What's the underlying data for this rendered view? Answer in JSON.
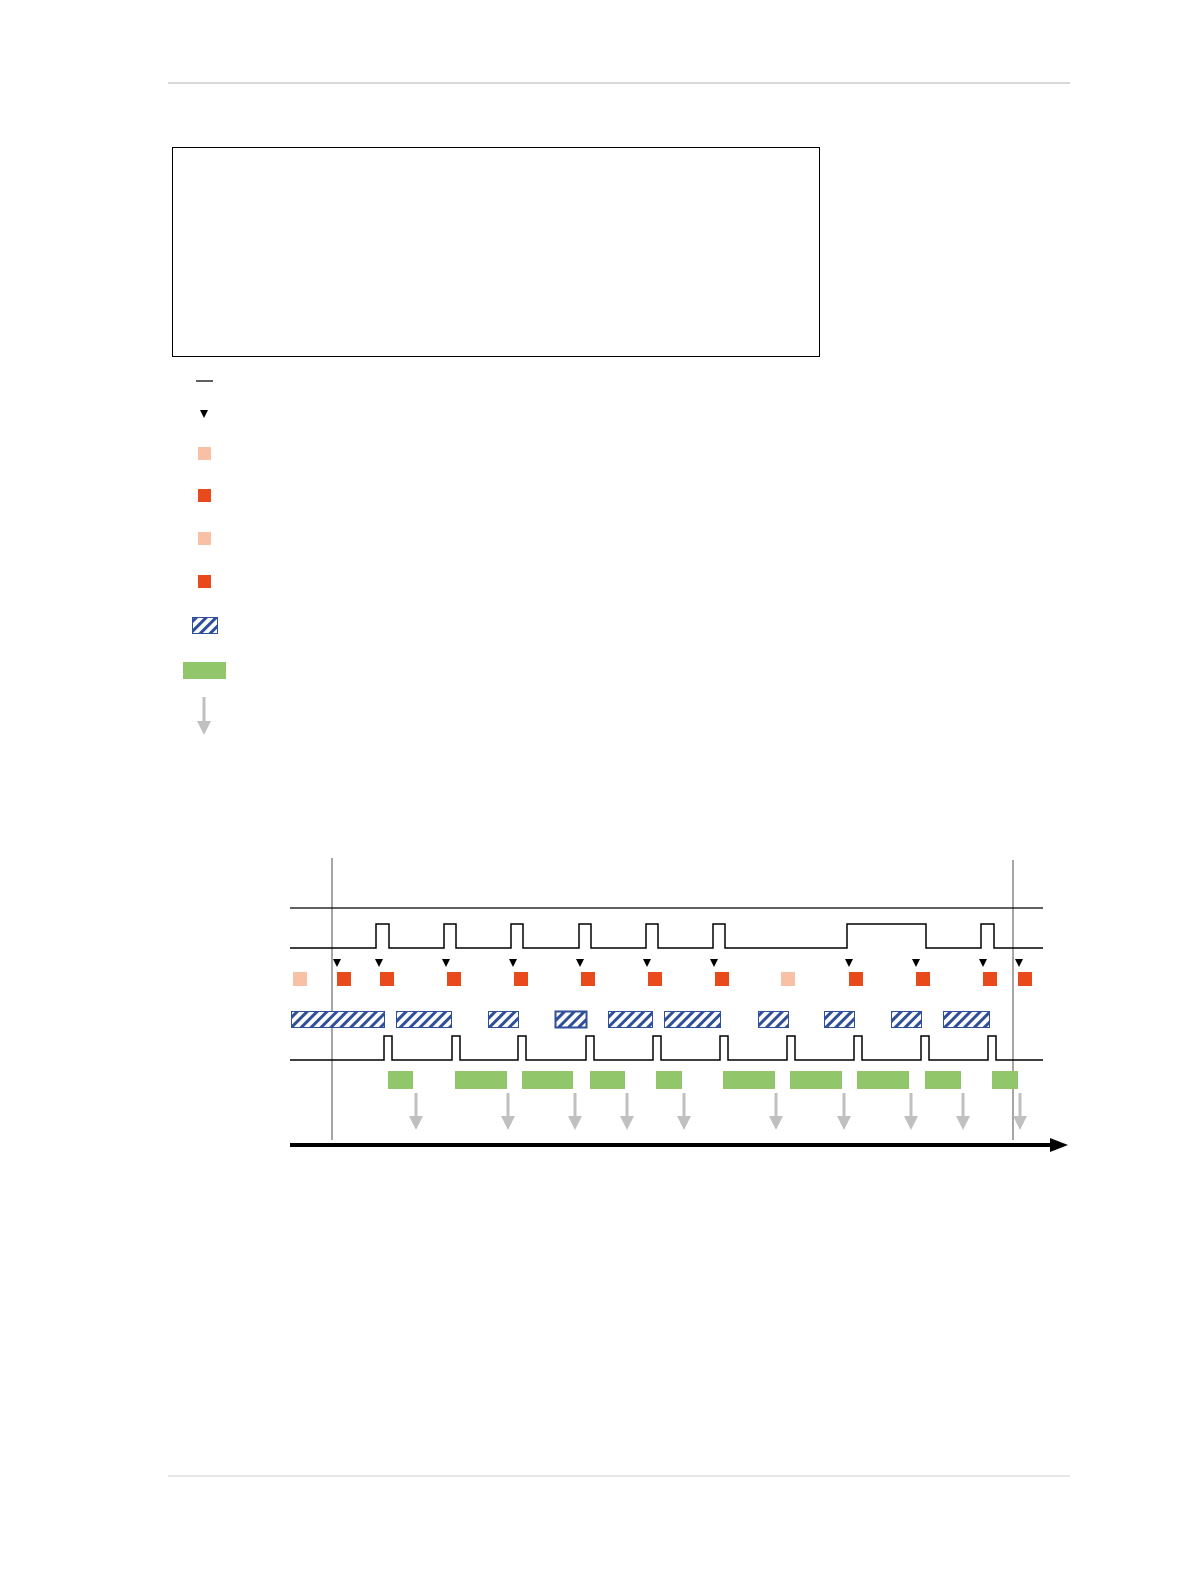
{
  "colors": {
    "rule": "#cccccc",
    "signal": "#000000",
    "marker": "#000000",
    "pending": "#f8c0a4",
    "active": "#e84a1c",
    "hatch": "#2f4f9a",
    "green": "#92c66a",
    "arrow": "#c0c0c0",
    "cursor": "#a6a6a6"
  },
  "legend": {
    "items": [
      {
        "icon": "signal-line-icon"
      },
      {
        "icon": "trigger-triangle-icon"
      },
      {
        "icon": "light-square-icon"
      },
      {
        "icon": "red-square-icon"
      },
      {
        "icon": "light-square-icon"
      },
      {
        "icon": "red-square-icon"
      },
      {
        "icon": "hatched-block-icon"
      },
      {
        "icon": "green-block-icon"
      },
      {
        "icon": "down-arrow-icon"
      }
    ]
  }
}
